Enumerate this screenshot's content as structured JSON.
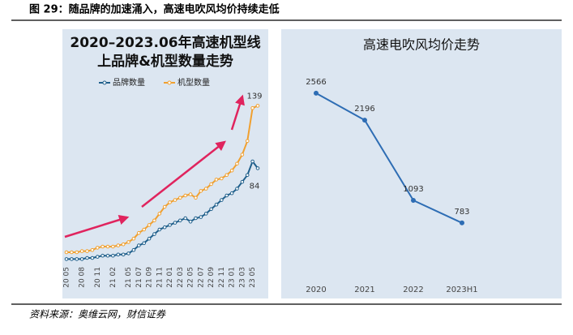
{
  "caption": "图 29：随品牌的加速涌入，高速电吹风均价持续走低",
  "source": "资料来源：奥维云网，财信证券",
  "chart_data": [
    {
      "type": "line",
      "title": [
        "2020–2023.06年高速机型线",
        "上品牌&机型数量走势"
      ],
      "categories": [
        "20 05",
        null,
        null,
        "20 08",
        null,
        null,
        "20 11",
        null,
        null,
        "21 02",
        null,
        null,
        "21 05",
        null,
        "21 07",
        null,
        "21 09",
        null,
        "21 11",
        null,
        "22 01",
        null,
        "22 03",
        null,
        "22 05",
        null,
        "22 07",
        null,
        "22 09",
        null,
        "22 11",
        null,
        "23 01",
        null,
        "23 03",
        null,
        "23 05",
        null
      ],
      "series": [
        {
          "name": "品牌数量",
          "color": "#1f5f8b",
          "values": [
            4,
            4,
            4,
            4,
            5,
            5,
            6,
            7,
            7,
            7,
            8,
            8,
            9,
            12,
            16,
            18,
            22,
            26,
            30,
            32,
            34,
            36,
            38,
            40,
            37,
            40,
            41,
            44,
            48,
            52,
            56,
            60,
            62,
            66,
            72,
            78,
            90,
            84
          ]
        },
        {
          "name": "机型数量",
          "color": "#f0a030",
          "values": [
            10,
            10,
            10,
            11,
            11,
            12,
            14,
            15,
            15,
            15,
            16,
            17,
            19,
            22,
            27,
            30,
            34,
            38,
            44,
            50,
            54,
            56,
            58,
            60,
            61,
            58,
            64,
            66,
            70,
            74,
            75,
            78,
            82,
            88,
            96,
            108,
            137,
            139
          ]
        }
      ],
      "ylim": [
        0,
        150
      ]
    },
    {
      "type": "line",
      "title": "高速电吹风均价走势",
      "categories": [
        "2020",
        "2021",
        "2022",
        "2023H1"
      ],
      "values": [
        2566,
        2196,
        1093,
        783
      ],
      "color": "#2e6db4",
      "ylim": [
        0,
        3000
      ]
    }
  ]
}
